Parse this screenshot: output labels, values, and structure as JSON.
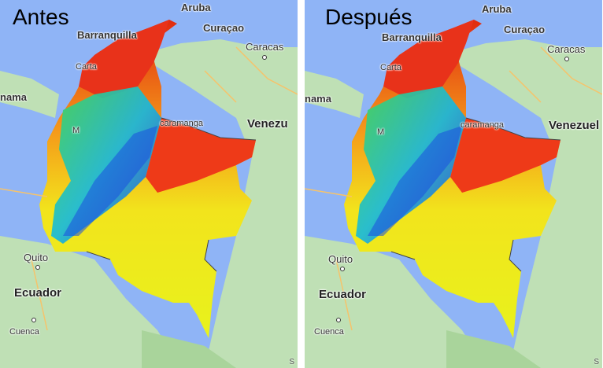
{
  "panels": [
    {
      "title": "Antes",
      "labels": {
        "aruba": "Aruba",
        "barranquilla": "Barranquilla",
        "curacao": "Curaçao",
        "caracas": "Caracas",
        "cartagena": "Carta",
        "panama": "nama",
        "bucaramanga": "caramanga",
        "venezuela": "Venezu",
        "quito": "Quito",
        "ecuador": "Ecuador",
        "cuenca": "Cuenca",
        "m": "M",
        "small_s": "S"
      }
    },
    {
      "title": "Después",
      "labels": {
        "aruba": "Aruba",
        "barranquilla": "Barranquilla",
        "curacao": "Curaçao",
        "caracas": "Caracas",
        "cartagena": "Carta",
        "panama": "nama",
        "bucaramanga": "caramanga",
        "venezuela": "Venezuel",
        "quito": "Quito",
        "ecuador": "Ecuador",
        "cuenca": "Cuenca",
        "m": "M",
        "small_s": "S"
      }
    }
  ],
  "colors": {
    "sea": "#8fb4f6",
    "land": "#b9dcb0",
    "heat_high": "#e8231c",
    "heat_mid": "#f2e41c",
    "heat_low": "#12a7d8"
  }
}
